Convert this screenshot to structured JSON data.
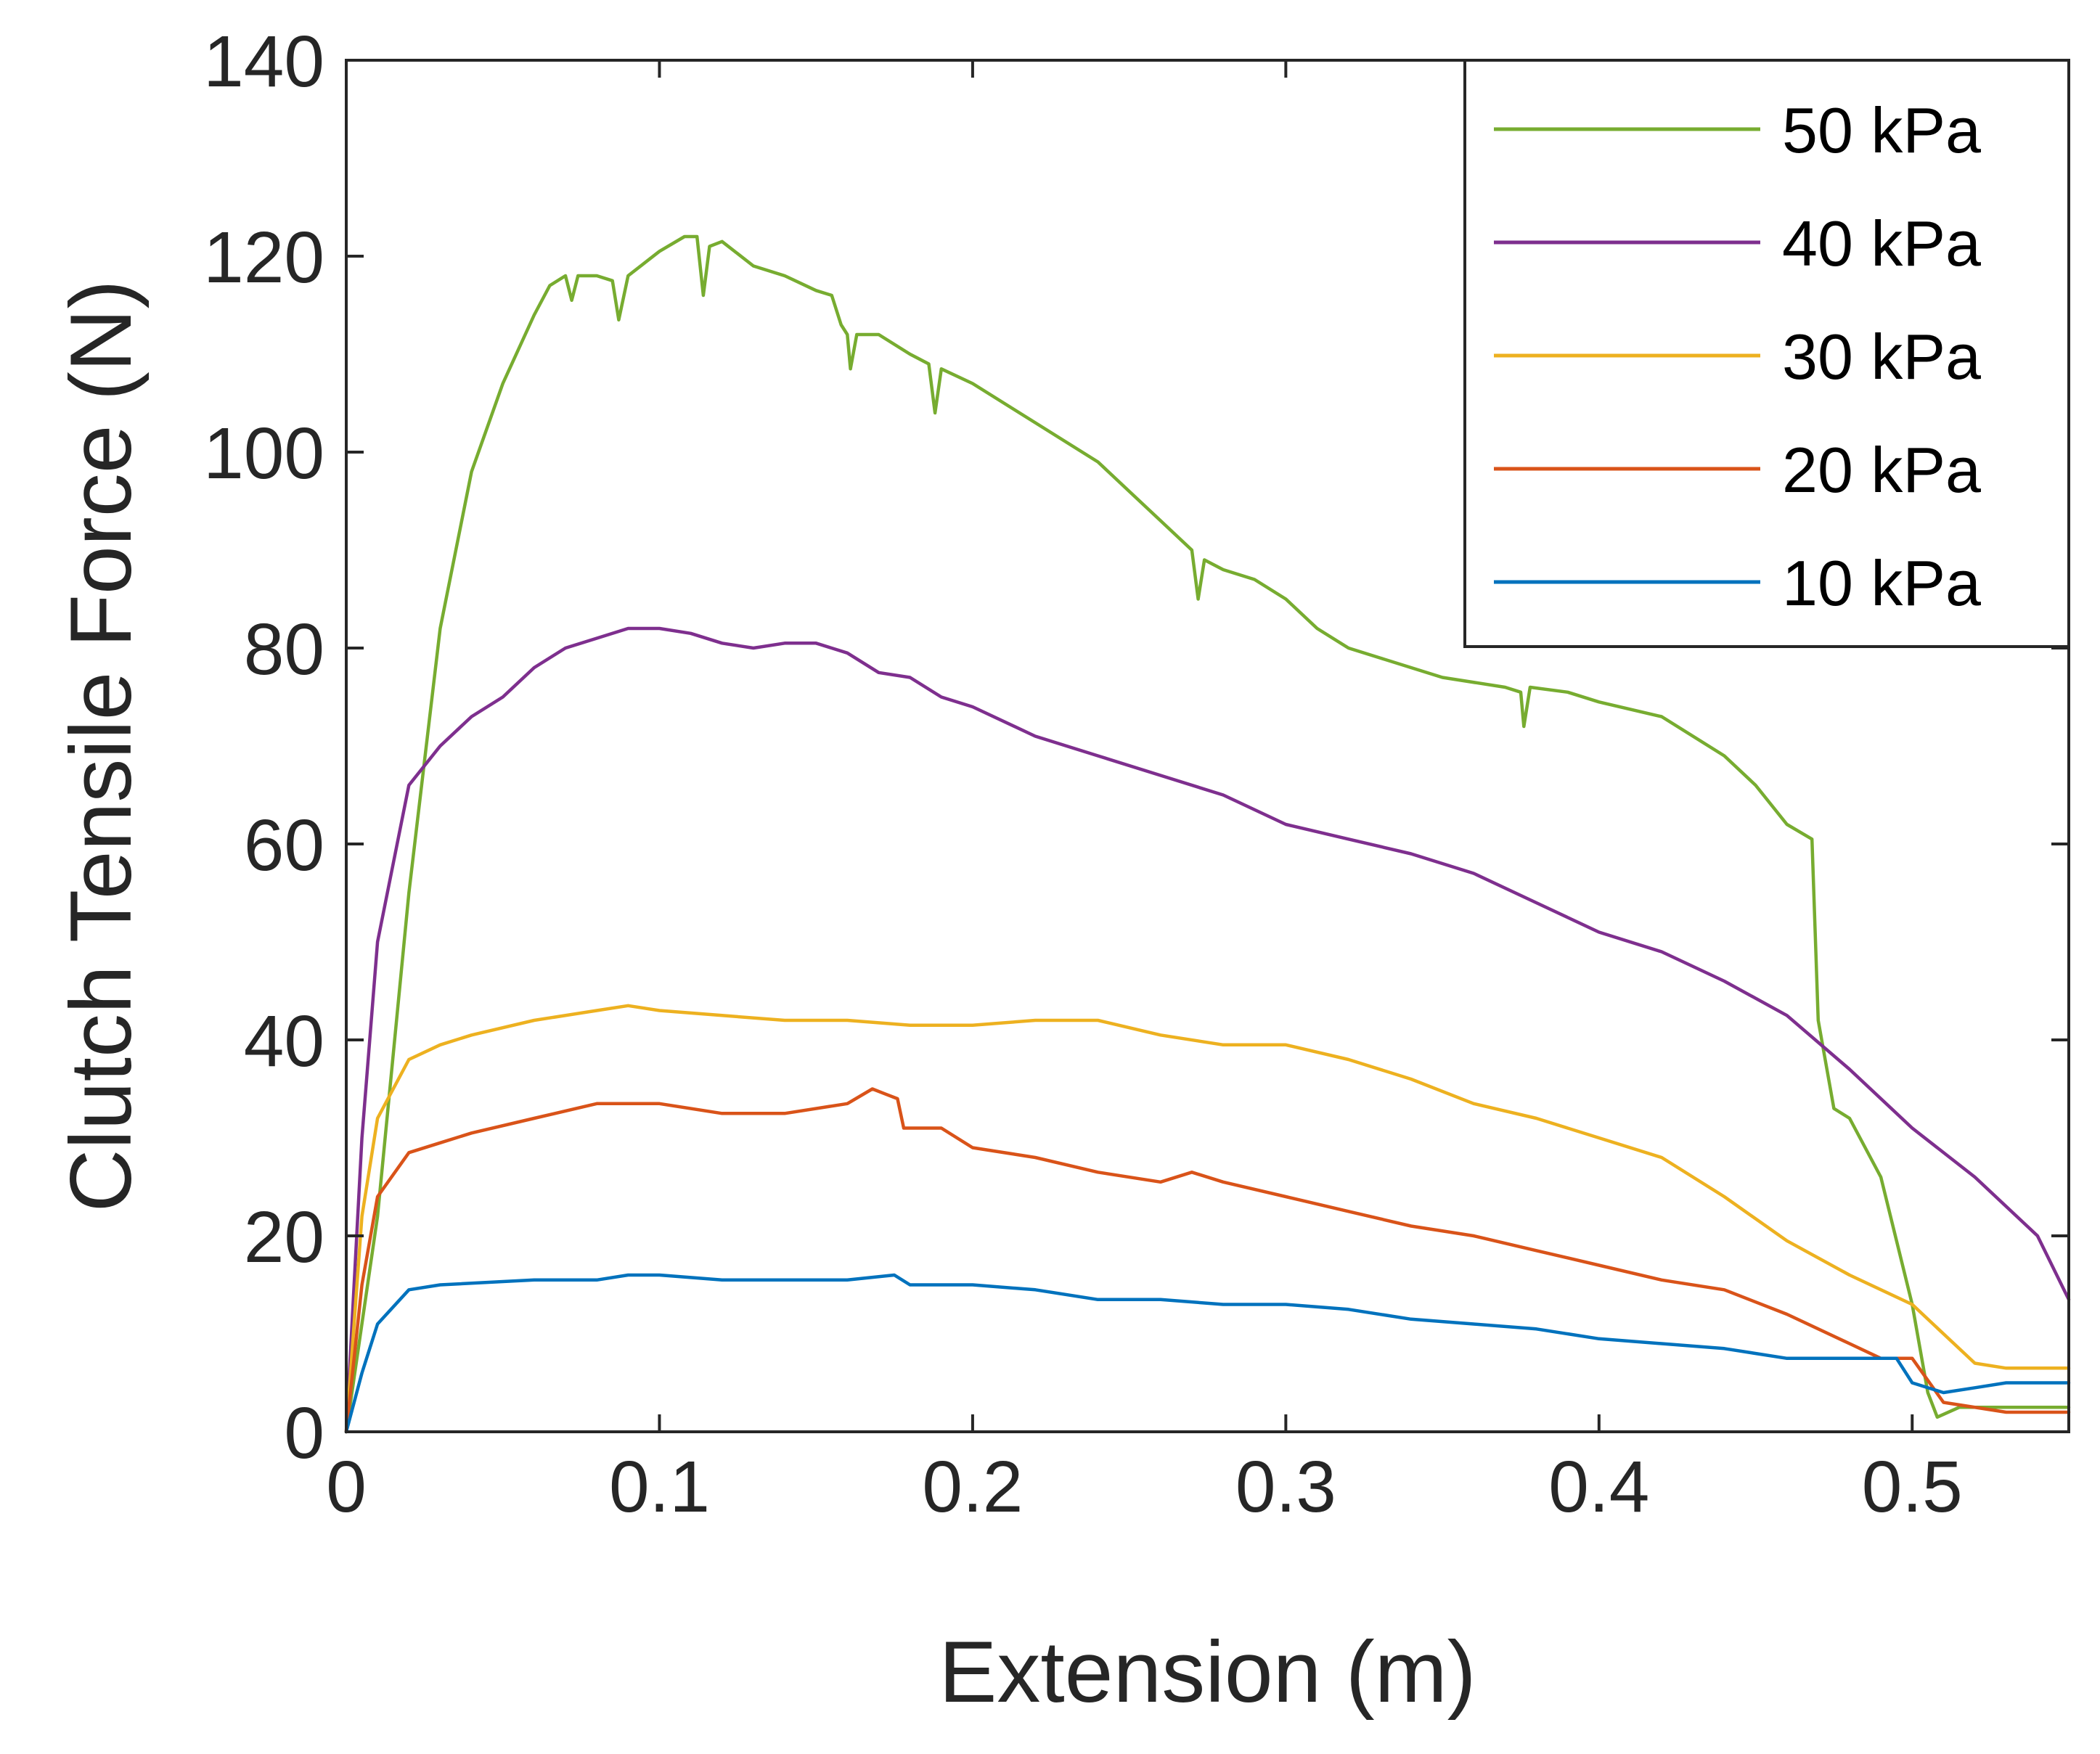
{
  "chart_data": {
    "type": "line",
    "title": "",
    "xlabel": "Extension (m)",
    "ylabel": "Clutch Tensile Force (N)",
    "xlim": [
      0,
      0.55
    ],
    "ylim": [
      0,
      140
    ],
    "xticks": [
      0,
      0.1,
      0.2,
      0.3,
      0.4,
      0.5
    ],
    "xtick_labels": [
      "0",
      "0.1",
      "0.2",
      "0.3",
      "0.4",
      "0.5"
    ],
    "yticks": [
      0,
      20,
      40,
      60,
      80,
      100,
      120,
      140
    ],
    "ytick_labels": [
      "0",
      "20",
      "40",
      "60",
      "80",
      "100",
      "120",
      "140"
    ],
    "grid": false,
    "legend_position": "top-right",
    "series": [
      {
        "name": "50 kPa",
        "color": "#77AC30",
        "points": [
          [
            0,
            0
          ],
          [
            0.01,
            22
          ],
          [
            0.02,
            55
          ],
          [
            0.03,
            82
          ],
          [
            0.04,
            98
          ],
          [
            0.05,
            107
          ],
          [
            0.06,
            114
          ],
          [
            0.065,
            117
          ],
          [
            0.07,
            118
          ],
          [
            0.072,
            115.5
          ],
          [
            0.074,
            118
          ],
          [
            0.08,
            118
          ],
          [
            0.085,
            117.5
          ],
          [
            0.087,
            113.5
          ],
          [
            0.09,
            118
          ],
          [
            0.1,
            120.5
          ],
          [
            0.108,
            122
          ],
          [
            0.112,
            122
          ],
          [
            0.114,
            116
          ],
          [
            0.116,
            121
          ],
          [
            0.12,
            121.5
          ],
          [
            0.13,
            119
          ],
          [
            0.14,
            118
          ],
          [
            0.15,
            116.5
          ],
          [
            0.155,
            116
          ],
          [
            0.158,
            113
          ],
          [
            0.16,
            112
          ],
          [
            0.161,
            108.5
          ],
          [
            0.163,
            112
          ],
          [
            0.17,
            112
          ],
          [
            0.18,
            110
          ],
          [
            0.186,
            109
          ],
          [
            0.188,
            104
          ],
          [
            0.19,
            108.5
          ],
          [
            0.2,
            107
          ],
          [
            0.22,
            103
          ],
          [
            0.24,
            99
          ],
          [
            0.25,
            96
          ],
          [
            0.26,
            93
          ],
          [
            0.27,
            90
          ],
          [
            0.272,
            85
          ],
          [
            0.274,
            89
          ],
          [
            0.28,
            88
          ],
          [
            0.29,
            87
          ],
          [
            0.3,
            85
          ],
          [
            0.31,
            82
          ],
          [
            0.32,
            80
          ],
          [
            0.33,
            79
          ],
          [
            0.35,
            77
          ],
          [
            0.37,
            76
          ],
          [
            0.375,
            75.5
          ],
          [
            0.376,
            72
          ],
          [
            0.378,
            76
          ],
          [
            0.39,
            75.5
          ],
          [
            0.4,
            74.5
          ],
          [
            0.42,
            73
          ],
          [
            0.44,
            69
          ],
          [
            0.45,
            66
          ],
          [
            0.46,
            62
          ],
          [
            0.468,
            60.5
          ],
          [
            0.47,
            42
          ],
          [
            0.475,
            33
          ],
          [
            0.48,
            32
          ],
          [
            0.49,
            26
          ],
          [
            0.5,
            13
          ],
          [
            0.505,
            4
          ],
          [
            0.508,
            1.5
          ],
          [
            0.515,
            2.5
          ],
          [
            0.53,
            2.5
          ],
          [
            0.55,
            2.5
          ]
        ]
      },
      {
        "name": "40 kPa",
        "color": "#7E2F8E",
        "points": [
          [
            0,
            0
          ],
          [
            0.005,
            30
          ],
          [
            0.01,
            50
          ],
          [
            0.02,
            66
          ],
          [
            0.03,
            70
          ],
          [
            0.04,
            73
          ],
          [
            0.05,
            75
          ],
          [
            0.06,
            78
          ],
          [
            0.07,
            80
          ],
          [
            0.08,
            81
          ],
          [
            0.09,
            82
          ],
          [
            0.1,
            82
          ],
          [
            0.11,
            81.5
          ],
          [
            0.12,
            80.5
          ],
          [
            0.13,
            80
          ],
          [
            0.14,
            80.5
          ],
          [
            0.15,
            80.5
          ],
          [
            0.16,
            79.5
          ],
          [
            0.17,
            77.5
          ],
          [
            0.18,
            77
          ],
          [
            0.19,
            75
          ],
          [
            0.2,
            74
          ],
          [
            0.22,
            71
          ],
          [
            0.24,
            69
          ],
          [
            0.26,
            67
          ],
          [
            0.28,
            65
          ],
          [
            0.3,
            62
          ],
          [
            0.32,
            60.5
          ],
          [
            0.34,
            59
          ],
          [
            0.36,
            57
          ],
          [
            0.38,
            54
          ],
          [
            0.4,
            51
          ],
          [
            0.42,
            49
          ],
          [
            0.44,
            46
          ],
          [
            0.46,
            42.5
          ],
          [
            0.48,
            37
          ],
          [
            0.5,
            31
          ],
          [
            0.52,
            26
          ],
          [
            0.54,
            20
          ],
          [
            0.55,
            13.5
          ]
        ]
      },
      {
        "name": "30 kPa",
        "color": "#EDB120",
        "points": [
          [
            0,
            0
          ],
          [
            0.005,
            22
          ],
          [
            0.01,
            32
          ],
          [
            0.02,
            38
          ],
          [
            0.03,
            39.5
          ],
          [
            0.04,
            40.5
          ],
          [
            0.06,
            42
          ],
          [
            0.08,
            43
          ],
          [
            0.09,
            43.5
          ],
          [
            0.1,
            43
          ],
          [
            0.12,
            42.5
          ],
          [
            0.14,
            42
          ],
          [
            0.16,
            42
          ],
          [
            0.18,
            41.5
          ],
          [
            0.2,
            41.5
          ],
          [
            0.22,
            42
          ],
          [
            0.24,
            42
          ],
          [
            0.26,
            40.5
          ],
          [
            0.28,
            39.5
          ],
          [
            0.3,
            39.5
          ],
          [
            0.32,
            38
          ],
          [
            0.34,
            36
          ],
          [
            0.36,
            33.5
          ],
          [
            0.38,
            32
          ],
          [
            0.4,
            30
          ],
          [
            0.42,
            28
          ],
          [
            0.44,
            24
          ],
          [
            0.46,
            19.5
          ],
          [
            0.48,
            16
          ],
          [
            0.5,
            13
          ],
          [
            0.51,
            10
          ],
          [
            0.52,
            7
          ],
          [
            0.53,
            6.5
          ],
          [
            0.55,
            6.5
          ]
        ]
      },
      {
        "name": "20 kPa",
        "color": "#D95319",
        "points": [
          [
            0,
            0
          ],
          [
            0.005,
            15
          ],
          [
            0.01,
            24
          ],
          [
            0.02,
            28.5
          ],
          [
            0.03,
            29.5
          ],
          [
            0.04,
            30.5
          ],
          [
            0.06,
            32
          ],
          [
            0.08,
            33.5
          ],
          [
            0.1,
            33.5
          ],
          [
            0.12,
            32.5
          ],
          [
            0.14,
            32.5
          ],
          [
            0.16,
            33.5
          ],
          [
            0.168,
            35
          ],
          [
            0.172,
            34.5
          ],
          [
            0.176,
            34
          ],
          [
            0.178,
            31
          ],
          [
            0.19,
            31
          ],
          [
            0.2,
            29
          ],
          [
            0.22,
            28
          ],
          [
            0.24,
            26.5
          ],
          [
            0.26,
            25.5
          ],
          [
            0.27,
            26.5
          ],
          [
            0.28,
            25.5
          ],
          [
            0.3,
            24
          ],
          [
            0.32,
            22.5
          ],
          [
            0.34,
            21
          ],
          [
            0.36,
            20
          ],
          [
            0.38,
            18.5
          ],
          [
            0.4,
            17
          ],
          [
            0.42,
            15.5
          ],
          [
            0.44,
            14.5
          ],
          [
            0.46,
            12
          ],
          [
            0.48,
            9
          ],
          [
            0.49,
            7.5
          ],
          [
            0.5,
            7.5
          ],
          [
            0.51,
            3
          ],
          [
            0.53,
            2
          ],
          [
            0.55,
            2
          ]
        ]
      },
      {
        "name": "10 kPa",
        "color": "#0072BD",
        "points": [
          [
            0,
            0
          ],
          [
            0.005,
            6
          ],
          [
            0.01,
            11
          ],
          [
            0.02,
            14.5
          ],
          [
            0.03,
            15
          ],
          [
            0.06,
            15.5
          ],
          [
            0.08,
            15.5
          ],
          [
            0.09,
            16
          ],
          [
            0.1,
            16
          ],
          [
            0.12,
            15.5
          ],
          [
            0.14,
            15.5
          ],
          [
            0.16,
            15.5
          ],
          [
            0.175,
            16
          ],
          [
            0.18,
            15
          ],
          [
            0.2,
            15
          ],
          [
            0.22,
            14.5
          ],
          [
            0.24,
            13.5
          ],
          [
            0.26,
            13.5
          ],
          [
            0.28,
            13
          ],
          [
            0.3,
            13
          ],
          [
            0.32,
            12.5
          ],
          [
            0.34,
            11.5
          ],
          [
            0.36,
            11
          ],
          [
            0.38,
            10.5
          ],
          [
            0.4,
            9.5
          ],
          [
            0.42,
            9
          ],
          [
            0.44,
            8.5
          ],
          [
            0.46,
            7.5
          ],
          [
            0.48,
            7.5
          ],
          [
            0.495,
            7.5
          ],
          [
            0.5,
            5
          ],
          [
            0.51,
            4
          ],
          [
            0.52,
            4.5
          ],
          [
            0.53,
            5
          ],
          [
            0.55,
            5
          ]
        ]
      }
    ]
  }
}
